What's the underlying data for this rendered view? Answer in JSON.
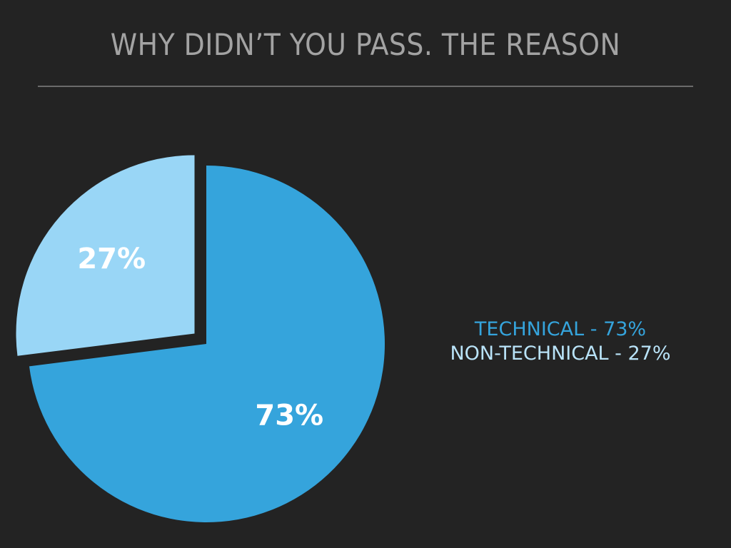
{
  "slide": {
    "title": "WHY DIDN’T YOU PASS. THE REASON"
  },
  "chart_data": {
    "type": "pie",
    "title": "WHY DIDN’T YOU PASS. THE REASON",
    "slices": [
      {
        "label": "TECHNICAL",
        "value": 73,
        "value_label": "73%",
        "color": "#35a4dc",
        "exploded": false
      },
      {
        "label": "NON-TECHNICAL",
        "value": 27,
        "value_label": "27%",
        "color": "#99d6f6",
        "exploded": true
      }
    ],
    "legend": {
      "placement": "right",
      "entries": [
        {
          "text": "TECHNICAL - 73%",
          "color": "#35a4dc"
        },
        {
          "text": "NON-TECHNICAL - 27%",
          "color": "#b9e3f8"
        }
      ]
    }
  }
}
